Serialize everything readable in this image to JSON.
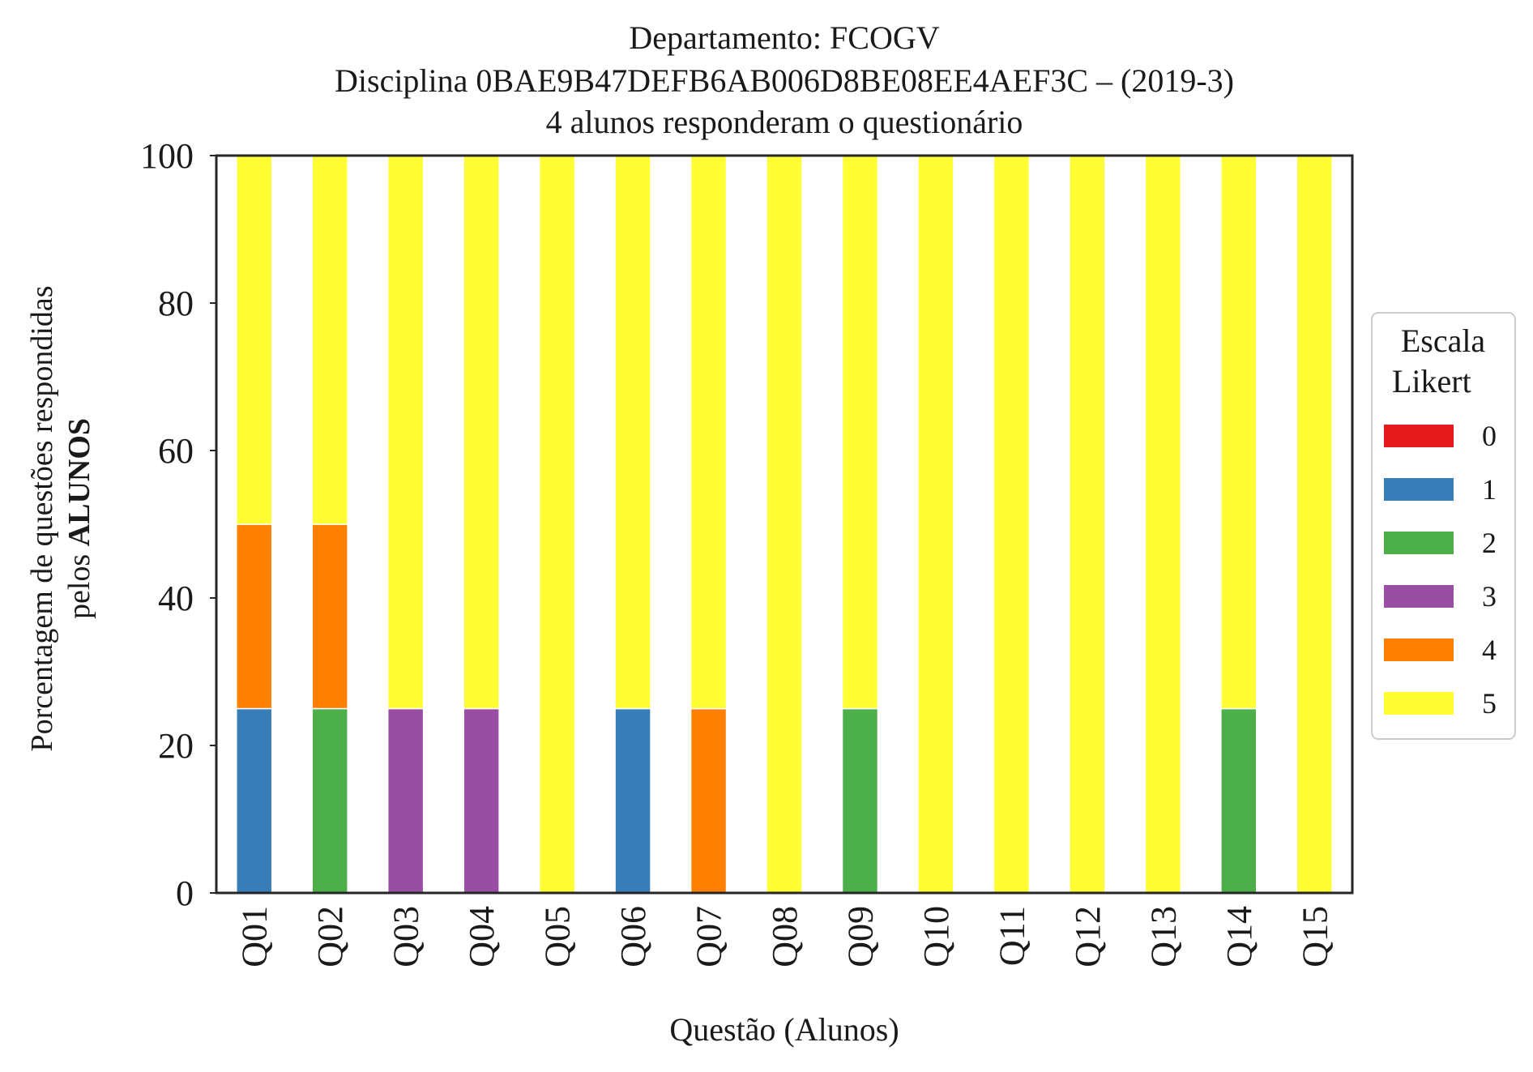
{
  "chart_data": {
    "type": "bar",
    "stacked": true,
    "title_lines": [
      "Departamento: FCOGV",
      "Disciplina 0BAE9B47DEFB6AB006D8BE08EE4AEF3C – (2019-3)",
      "4 alunos responderam o questionário"
    ],
    "xlabel": "Questão (Alunos)",
    "ylabel_line1": "Porcentagem de questões respondidas",
    "ylabel_line2_prefix": "pelos ",
    "ylabel_line2_bold": "ALUNOS",
    "ylim": [
      0,
      100
    ],
    "yticks": [
      "0",
      "20",
      "40",
      "60",
      "80",
      "100"
    ],
    "grid": false,
    "categories": [
      "Q01",
      "Q02",
      "Q03",
      "Q04",
      "Q05",
      "Q06",
      "Q07",
      "Q08",
      "Q09",
      "Q10",
      "Q11",
      "Q12",
      "Q13",
      "Q14",
      "Q15"
    ],
    "legend": {
      "title_line1": "Escala",
      "title_line2": "Likert",
      "placement": "right"
    },
    "series": [
      {
        "name": "0",
        "color": "#e41a1c",
        "values": [
          0,
          0,
          0,
          0,
          0,
          0,
          0,
          0,
          0,
          0,
          0,
          0,
          0,
          0,
          0
        ]
      },
      {
        "name": "1",
        "color": "#377eb8",
        "values": [
          25,
          0,
          0,
          0,
          0,
          25,
          0,
          0,
          0,
          0,
          0,
          0,
          0,
          0,
          0
        ]
      },
      {
        "name": "2",
        "color": "#4daf4a",
        "values": [
          0,
          25,
          0,
          0,
          0,
          0,
          0,
          0,
          25,
          0,
          0,
          0,
          0,
          25,
          0
        ]
      },
      {
        "name": "3",
        "color": "#984ea3",
        "values": [
          0,
          0,
          25,
          25,
          0,
          0,
          0,
          0,
          0,
          0,
          0,
          0,
          0,
          0,
          0
        ]
      },
      {
        "name": "4",
        "color": "#ff7f00",
        "values": [
          25,
          25,
          0,
          0,
          0,
          0,
          25,
          0,
          0,
          0,
          0,
          0,
          0,
          0,
          0
        ]
      },
      {
        "name": "5",
        "color": "#ffff33",
        "values": [
          50,
          50,
          75,
          75,
          100,
          75,
          75,
          100,
          75,
          100,
          100,
          100,
          100,
          75,
          100
        ]
      }
    ]
  }
}
